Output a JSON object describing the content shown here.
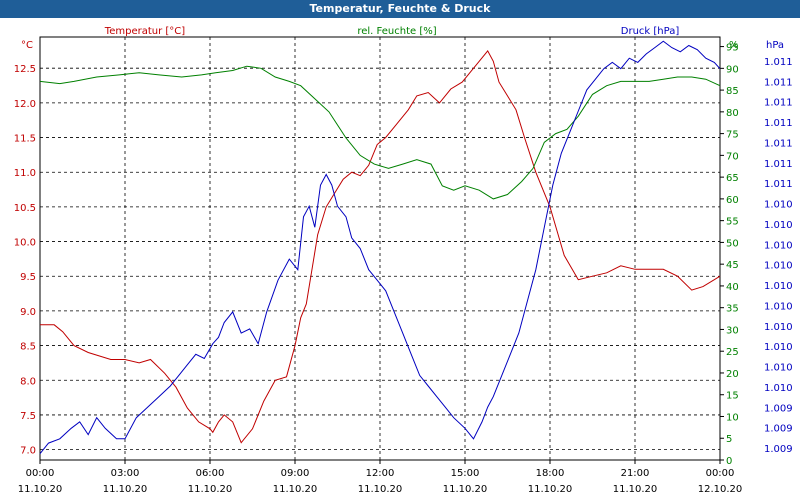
{
  "window": {
    "title": "Temperatur, Feuchte & Druck"
  },
  "chart_data": {
    "type": "line",
    "title": "Temperatur, Feuchte & Druck",
    "x_time_labels": [
      "00:00",
      "03:00",
      "06:00",
      "09:00",
      "12:00",
      "15:00",
      "18:00",
      "21:00",
      "00:00"
    ],
    "x_date_labels": [
      "11.10.20",
      "11.10.20",
      "11.10.20",
      "11.10.20",
      "11.10.20",
      "11.10.20",
      "11.10.20",
      "11.10.20",
      "12.10.20"
    ],
    "x_hours": [
      0,
      3,
      6,
      9,
      12,
      15,
      18,
      21,
      24
    ],
    "axes": {
      "left": {
        "unit": "°C",
        "min": 6.85,
        "max": 12.95,
        "ticks": [
          7.0,
          7.5,
          8.0,
          8.5,
          9.0,
          9.5,
          10.0,
          10.5,
          11.0,
          11.5,
          12.0,
          12.5
        ],
        "tick_labels": [
          "7.0",
          "7.5",
          "8.0",
          "8.5",
          "9.0",
          "9.5",
          "10.0",
          "10.5",
          "11.0",
          "11.5",
          "12.0",
          "12.5"
        ],
        "color": "#c00000"
      },
      "middle": {
        "unit": "%",
        "min": 0,
        "max": 97.2,
        "ticks": [
          0,
          5,
          10,
          15,
          20,
          25,
          30,
          35,
          40,
          45,
          50,
          55,
          60,
          65,
          70,
          75,
          80,
          85,
          90,
          95
        ],
        "tick_labels": [
          "0",
          "5",
          "10",
          "15",
          "20",
          "25",
          "30",
          "35",
          "40",
          "45",
          "50",
          "55",
          "60",
          "65",
          "70",
          "75",
          "80",
          "85",
          "90",
          "95"
        ],
        "color": "#008000"
      },
      "right": {
        "unit": "hPa",
        "min": 1009.0,
        "max": 1011.0,
        "tick_labels": [
          "1.011",
          "1.011",
          "1.011",
          "1.011",
          "1.011",
          "1.011",
          "1.011",
          "1.010",
          "1.010",
          "1.010",
          "1.010",
          "1.010",
          "1.010",
          "1.010",
          "1.010",
          "1.010",
          "1.010",
          "1.009",
          "1.009",
          "1.009"
        ],
        "color": "#0000c0"
      }
    },
    "series": [
      {
        "name": "Temperatur [°C]",
        "axis": "left",
        "color": "#c00000",
        "x": [
          0,
          0.5,
          0.8,
          1.2,
          1.7,
          2.1,
          2.5,
          3.0,
          3.5,
          3.9,
          4.4,
          4.8,
          5.2,
          5.6,
          6.0,
          6.1,
          6.3,
          6.5,
          6.8,
          7.1,
          7.5,
          7.9,
          8.3,
          8.7,
          9.0,
          9.2,
          9.4,
          9.6,
          9.8,
          10.1,
          10.4,
          10.7,
          11.0,
          11.3,
          11.6,
          11.9,
          12.2,
          12.6,
          13.0,
          13.3,
          13.7,
          14.1,
          14.5,
          14.9,
          15.2,
          15.5,
          15.8,
          16.0,
          16.2,
          16.5,
          16.8,
          17.1,
          17.5,
          18.0,
          18.5,
          19.0,
          19.5,
          20.0,
          20.5,
          21.0,
          21.5,
          22.0,
          22.5,
          23.0,
          23.4,
          23.8,
          24.0
        ],
        "values": [
          8.8,
          8.8,
          8.7,
          8.5,
          8.4,
          8.35,
          8.3,
          8.3,
          8.25,
          8.3,
          8.1,
          7.9,
          7.6,
          7.4,
          7.3,
          7.25,
          7.4,
          7.5,
          7.4,
          7.1,
          7.3,
          7.7,
          8.0,
          8.05,
          8.5,
          8.9,
          9.1,
          9.6,
          10.1,
          10.5,
          10.7,
          10.9,
          11.0,
          10.95,
          11.1,
          11.4,
          11.5,
          11.7,
          11.9,
          12.1,
          12.15,
          12.0,
          12.2,
          12.3,
          12.45,
          12.6,
          12.75,
          12.6,
          12.3,
          12.1,
          11.9,
          11.5,
          11.0,
          10.5,
          9.8,
          9.45,
          9.5,
          9.55,
          9.65,
          9.6,
          9.6,
          9.6,
          9.5,
          9.3,
          9.35,
          9.45,
          9.5
        ]
      },
      {
        "name": "rel. Feuchte [%]",
        "axis": "middle",
        "color": "#008000",
        "x": [
          0,
          0.7,
          1.2,
          2.0,
          2.8,
          3.5,
          4.2,
          5.0,
          5.7,
          6.2,
          6.8,
          7.3,
          7.8,
          8.3,
          8.8,
          9.2,
          9.7,
          10.2,
          10.8,
          11.3,
          11.8,
          12.3,
          12.8,
          13.3,
          13.8,
          14.2,
          14.6,
          15.0,
          15.5,
          16.0,
          16.5,
          17.0,
          17.4,
          17.8,
          18.2,
          18.6,
          19.0,
          19.5,
          20.0,
          20.5,
          21.0,
          21.5,
          22.0,
          22.5,
          23.0,
          23.5,
          24.0
        ],
        "values": [
          87,
          86.5,
          87,
          88,
          88.5,
          89,
          88.5,
          88,
          88.5,
          89,
          89.5,
          90.5,
          90,
          88,
          87,
          86,
          83,
          80,
          74,
          70,
          68,
          67,
          68,
          69,
          68,
          63,
          62,
          63,
          62,
          60,
          61,
          64,
          67,
          73,
          75,
          76,
          79,
          84,
          86,
          87,
          87,
          87,
          87.5,
          88,
          88,
          87.5,
          86
        ]
      },
      {
        "name": "Druck [hPa]",
        "axis": "right",
        "color": "#0000c0",
        "x": [
          0,
          0.3,
          0.7,
          1.1,
          1.4,
          1.7,
          2.0,
          2.3,
          2.7,
          3.0,
          3.4,
          3.8,
          4.2,
          4.6,
          4.9,
          5.2,
          5.5,
          5.8,
          6.1,
          6.3,
          6.5,
          6.8,
          7.1,
          7.4,
          7.7,
          8.0,
          8.4,
          8.8,
          9.1,
          9.3,
          9.5,
          9.7,
          9.9,
          10.1,
          10.3,
          10.5,
          10.8,
          11.0,
          11.3,
          11.6,
          11.9,
          12.2,
          12.5,
          12.8,
          13.1,
          13.4,
          13.7,
          14.0,
          14.3,
          14.6,
          15.0,
          15.3,
          15.6,
          15.8,
          16.0,
          16.3,
          16.6,
          16.9,
          17.2,
          17.5,
          17.8,
          18.1,
          18.4,
          18.7,
          19.0,
          19.3,
          19.6,
          19.9,
          20.2,
          20.5,
          20.8,
          21.1,
          21.4,
          21.7,
          22.0,
          22.3,
          22.6,
          22.9,
          23.2,
          23.5,
          23.8,
          24.0
        ],
        "values": [
          1009.03,
          1009.08,
          1009.1,
          1009.15,
          1009.18,
          1009.12,
          1009.2,
          1009.15,
          1009.1,
          1009.1,
          1009.2,
          1009.25,
          1009.3,
          1009.35,
          1009.4,
          1009.45,
          1009.5,
          1009.48,
          1009.55,
          1009.58,
          1009.65,
          1009.7,
          1009.6,
          1009.62,
          1009.55,
          1009.7,
          1009.85,
          1009.95,
          1009.9,
          1010.15,
          1010.2,
          1010.1,
          1010.3,
          1010.35,
          1010.3,
          1010.2,
          1010.15,
          1010.05,
          1010.0,
          1009.9,
          1009.85,
          1009.8,
          1009.7,
          1009.6,
          1009.5,
          1009.4,
          1009.35,
          1009.3,
          1009.25,
          1009.2,
          1009.15,
          1009.1,
          1009.18,
          1009.25,
          1009.3,
          1009.4,
          1009.5,
          1009.6,
          1009.75,
          1009.9,
          1010.1,
          1010.3,
          1010.45,
          1010.55,
          1010.65,
          1010.75,
          1010.8,
          1010.85,
          1010.88,
          1010.85,
          1010.9,
          1010.88,
          1010.92,
          1010.95,
          1010.98,
          1010.95,
          1010.93,
          1010.96,
          1010.94,
          1010.9,
          1010.88,
          1010.85
        ]
      }
    ]
  }
}
